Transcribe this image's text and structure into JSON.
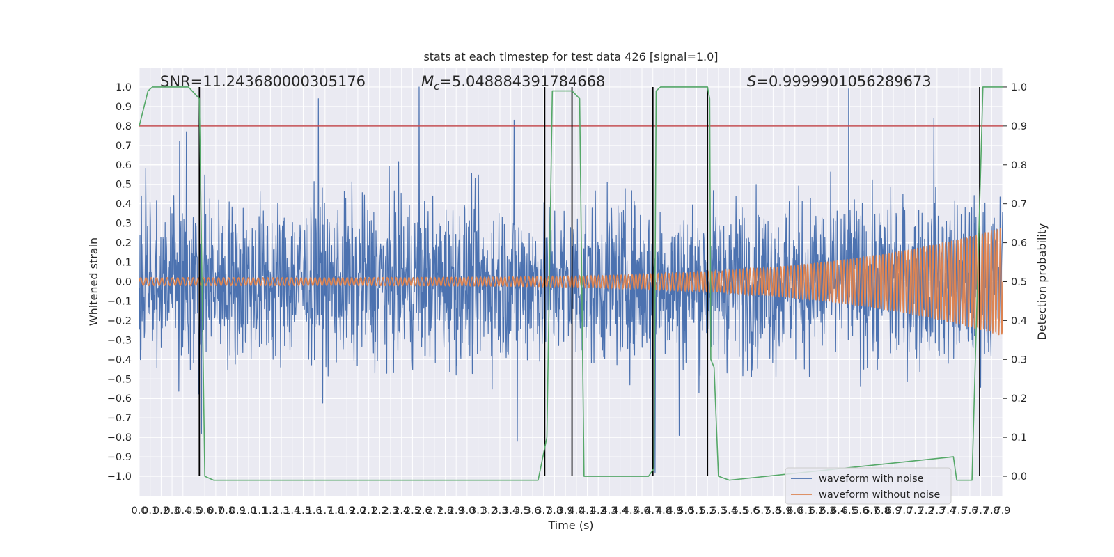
{
  "chart_data": {
    "type": "line",
    "title": "stats at each timestep for test data 426 [signal=1.0]",
    "xlabel": "Time (s)",
    "ylabel": "Whitened strain",
    "y2label": "Detection probability",
    "xlim": [
      0.0,
      7.9
    ],
    "ylim": [
      -1.1,
      1.1
    ],
    "y2lim": [
      -0.05,
      1.05
    ],
    "grid": true,
    "x_ticks": [
      0.0,
      0.1,
      0.2,
      0.3,
      0.4,
      0.5,
      0.6,
      0.7,
      0.8,
      0.9,
      1.0,
      1.1,
      1.2,
      1.3,
      1.4,
      1.5,
      1.6,
      1.7,
      1.8,
      1.9,
      2.0,
      2.1,
      2.2,
      2.3,
      2.4,
      2.5,
      2.6,
      2.7,
      2.8,
      2.9,
      3.0,
      3.1,
      3.2,
      3.3,
      3.4,
      3.5,
      3.6,
      3.7,
      3.8,
      3.9,
      4.0,
      4.1,
      4.2,
      4.3,
      4.4,
      4.5,
      4.6,
      4.7,
      4.8,
      4.9,
      5.0,
      5.1,
      5.2,
      5.3,
      5.4,
      5.5,
      5.6,
      5.7,
      5.8,
      5.9,
      6.0,
      6.1,
      6.2,
      6.3,
      6.4,
      6.5,
      6.6,
      6.7,
      6.8,
      6.9,
      7.0,
      7.1,
      7.2,
      7.3,
      7.4,
      7.5,
      7.6,
      7.7,
      7.8,
      7.9
    ],
    "y_ticks": [
      -1.0,
      -0.9,
      -0.8,
      -0.7,
      -0.6,
      -0.5,
      -0.4,
      -0.3,
      -0.2,
      -0.1,
      0.0,
      0.1,
      0.2,
      0.3,
      0.4,
      0.5,
      0.6,
      0.7,
      0.8,
      0.9,
      1.0
    ],
    "y2_ticks": [
      0.0,
      0.1,
      0.2,
      0.3,
      0.4,
      0.5,
      0.6,
      0.7,
      0.8,
      0.9,
      1.0
    ],
    "annotations": [
      {
        "label": "SNR",
        "text": "=11.243680000305176"
      },
      {
        "label": "M",
        "sub": "c",
        "text": "=5.048884391784668"
      },
      {
        "label": "S",
        "text": "=0.9999901056289673"
      }
    ],
    "series": [
      {
        "name": "waveform with noise",
        "axis": "left",
        "color": "#4c72b0",
        "noise_sigma": 0.21,
        "peaks": [
          {
            "t": 0.06,
            "v": 0.58
          },
          {
            "t": 0.37,
            "v": 0.72
          },
          {
            "t": 0.43,
            "v": 0.77
          },
          {
            "t": 0.57,
            "v": -0.78
          },
          {
            "t": 1.64,
            "v": 0.94
          },
          {
            "t": 2.56,
            "v": 1.0
          },
          {
            "t": 3.43,
            "v": 0.83
          },
          {
            "t": 3.46,
            "v": -0.82
          },
          {
            "t": 4.72,
            "v": -0.98
          },
          {
            "t": 4.94,
            "v": -0.79
          },
          {
            "t": 6.49,
            "v": 0.99
          },
          {
            "t": 7.27,
            "v": 0.84
          }
        ]
      },
      {
        "name": "waveform without noise",
        "axis": "left",
        "color": "#dd8452",
        "amplitude_start": 0.02,
        "amplitude_end": 0.28,
        "cycles": 160
      },
      {
        "name": "detection probability",
        "axis": "right",
        "color": "#55a868",
        "x": [
          0.0,
          0.08,
          0.12,
          0.3,
          0.45,
          0.55,
          0.6,
          0.68,
          3.65,
          3.73,
          3.78,
          3.96,
          4.03,
          4.07,
          4.4,
          4.66,
          4.71,
          4.73,
          4.77,
          5.2,
          5.22,
          5.23,
          5.26,
          5.3,
          5.4,
          7.45,
          7.48,
          7.62,
          7.72,
          7.83,
          7.9
        ],
        "y": [
          0.9,
          0.99,
          1.0,
          1.0,
          1.0,
          0.97,
          0.0,
          -0.01,
          -0.01,
          0.1,
          0.99,
          0.99,
          0.97,
          0.0,
          0.0,
          0.0,
          0.02,
          0.99,
          1.0,
          1.0,
          0.97,
          0.3,
          0.28,
          0.0,
          -0.01,
          0.05,
          -0.01,
          -0.01,
          1.0,
          1.0,
          1.0
        ]
      }
    ],
    "threshold": {
      "axis": "right",
      "value": 0.9,
      "color": "#c44e52"
    },
    "event_markers_x": [
      0.55,
      3.71,
      3.96,
      4.7,
      5.2,
      7.69
    ],
    "legend": {
      "position": "lower-right",
      "entries": [
        {
          "label": "waveform with noise",
          "color": "#4c72b0"
        },
        {
          "label": "waveform without noise",
          "color": "#dd8452"
        }
      ]
    }
  }
}
